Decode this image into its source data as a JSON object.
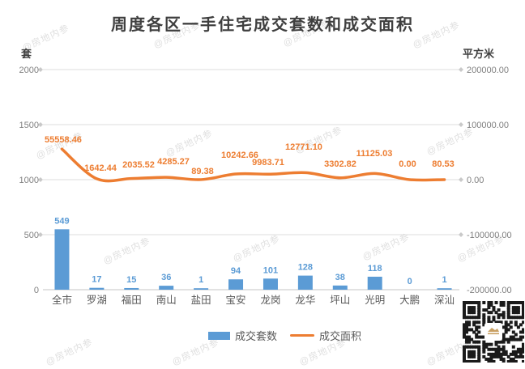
{
  "title": "周度各区一手住宅成交套数和成交面积",
  "watermark_text": "@房地内参",
  "axes": {
    "left": {
      "unit": "套",
      "ticks": [
        "2000",
        "1500",
        "1000",
        "500",
        "0"
      ]
    },
    "right": {
      "unit": "平方米",
      "ticks": [
        "200000.00",
        "100000.00",
        "0.00",
        "-100000.00",
        "-200000.00"
      ]
    }
  },
  "legend": {
    "items": [
      {
        "label": "成交套数",
        "type": "bar",
        "color": "#5B9BD5"
      },
      {
        "label": "成交面积",
        "type": "line",
        "color": "#ED7D31"
      }
    ]
  },
  "chart_data": {
    "type": "combo-bar-line",
    "title": "周度各区一手住宅成交套数和成交面积",
    "categories": [
      "全市",
      "罗湖",
      "福田",
      "南山",
      "盐田",
      "宝安",
      "龙岗",
      "龙华",
      "坪山",
      "光明",
      "大鹏",
      "深汕"
    ],
    "series": [
      {
        "name": "成交套数",
        "type": "bar",
        "axis": "left",
        "color": "#5B9BD5",
        "values": [
          549,
          17,
          15,
          36,
          1,
          94,
          101,
          128,
          38,
          118,
          0,
          1
        ]
      },
      {
        "name": "成交面积",
        "type": "line",
        "axis": "right",
        "color": "#ED7D31",
        "values": [
          55558.46,
          1642.44,
          2035.52,
          4285.27,
          89.38,
          10242.66,
          9983.71,
          12771.1,
          3302.82,
          11125.03,
          0.0,
          80.53
        ],
        "value_labels": [
          "55558.46",
          "1642.44",
          "2035.52",
          "4285.27",
          "89.38",
          "10242.66",
          "9983.71",
          "12771.10",
          "3302.82",
          "11125.03",
          "0.00",
          "80.53"
        ]
      }
    ],
    "left_ylim": [
      0,
      2000
    ],
    "right_ylim": [
      -200000,
      200000
    ],
    "grid": true,
    "legend_position": "bottom"
  },
  "colors": {
    "bar": "#5B9BD5",
    "line": "#ED7D31",
    "grid": "#DCDCDC",
    "axis": "#C4C4C4",
    "diamond": "#C9C9C9",
    "tick_text": "#7F7F7F",
    "category_text": "#595959",
    "title_text": "#3F3F3F"
  }
}
